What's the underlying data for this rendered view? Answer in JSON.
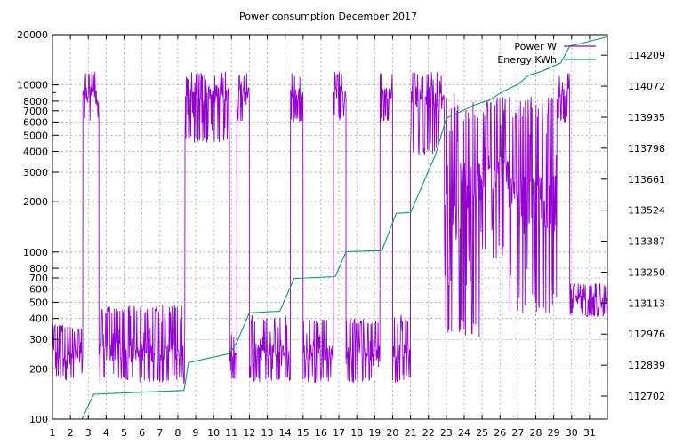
{
  "chart_data": {
    "type": "line",
    "title": "Power consumption December 2017",
    "x_range": [
      1,
      32
    ],
    "x_ticks": [
      "1",
      "2",
      "3",
      "4",
      "5",
      "6",
      "7",
      "8",
      "9",
      "10",
      "11",
      "12",
      "13",
      "14",
      "15",
      "16",
      "17",
      "18",
      "19",
      "20",
      "21",
      "22",
      "23",
      "24",
      "25",
      "26",
      "27",
      "28",
      "29",
      "30",
      "31"
    ],
    "y_left": {
      "scale": "log",
      "range": [
        100,
        20000
      ],
      "ticks": [
        "100",
        "200",
        "300",
        "400",
        "500",
        "600",
        "700",
        "800",
        "1000",
        "2000",
        "3000",
        "4000",
        "5000",
        "6000",
        "7000",
        "8000",
        "10000",
        "20000"
      ]
    },
    "y_right": {
      "scale": "linear",
      "range": [
        112600,
        114300
      ],
      "ticks": [
        "112702",
        "112839",
        "112976",
        "113113",
        "113250",
        "113387",
        "113524",
        "113661",
        "113798",
        "113935",
        "114072",
        "114209"
      ]
    },
    "grid": true,
    "legend": {
      "position": "top-right",
      "entries": [
        {
          "label": "Power W",
          "color": "#9400d3"
        },
        {
          "label": "Energy KWh",
          "color": "#009e73"
        }
      ]
    },
    "series": [
      {
        "name": "Power W",
        "axis": "left",
        "color": "#9400d3",
        "blocks": [
          {
            "x": [
              1.0,
              2.7
            ],
            "low": 170,
            "high": 370,
            "base": 240
          },
          {
            "x": [
              2.7,
              3.6
            ],
            "low": 6000,
            "high": 12000,
            "base": 9000
          },
          {
            "x": [
              3.6,
              8.4
            ],
            "low": 165,
            "high": 480,
            "base": 250
          },
          {
            "x": [
              8.4,
              10.9
            ],
            "low": 4500,
            "high": 12000,
            "base": 9000
          },
          {
            "x": [
              10.9,
              11.3
            ],
            "low": 170,
            "high": 330,
            "base": 240
          },
          {
            "x": [
              11.3,
              12.0
            ],
            "low": 6000,
            "high": 12000,
            "base": 9000
          },
          {
            "x": [
              12.0,
              14.3
            ],
            "low": 165,
            "high": 420,
            "base": 250
          },
          {
            "x": [
              14.3,
              15.0
            ],
            "low": 6000,
            "high": 12000,
            "base": 9000
          },
          {
            "x": [
              15.0,
              16.7
            ],
            "low": 165,
            "high": 400,
            "base": 250
          },
          {
            "x": [
              16.7,
              17.4
            ],
            "low": 6000,
            "high": 12000,
            "base": 9000
          },
          {
            "x": [
              17.4,
              19.3
            ],
            "low": 165,
            "high": 400,
            "base": 250
          },
          {
            "x": [
              19.3,
              20.0
            ],
            "low": 6000,
            "high": 12000,
            "base": 9000
          },
          {
            "x": [
              20.0,
              21.0
            ],
            "low": 165,
            "high": 420,
            "base": 250
          },
          {
            "x": [
              21.0,
              22.9
            ],
            "low": 3800,
            "high": 12000,
            "base": 8500
          },
          {
            "x": [
              22.9,
              23.8
            ],
            "low": 250,
            "high": 9000,
            "base": 1500
          },
          {
            "x": [
              23.8,
              25.0
            ],
            "low": 300,
            "high": 8000,
            "base": 2500
          },
          {
            "x": [
              25.0,
              26.5
            ],
            "low": 900,
            "high": 8500,
            "base": 3000
          },
          {
            "x": [
              26.5,
              29.2
            ],
            "low": 420,
            "high": 8500,
            "base": 2000
          },
          {
            "x": [
              29.2,
              29.9
            ],
            "low": 6000,
            "high": 12000,
            "base": 9000
          },
          {
            "x": [
              29.9,
              32.0
            ],
            "low": 410,
            "high": 650,
            "base": 520
          }
        ]
      },
      {
        "name": "Energy KWh",
        "axis": "right",
        "color": "#009e73",
        "x": [
          1.0,
          2.65,
          3.3,
          8.35,
          8.6,
          10.9,
          11.3,
          12.0,
          13.7,
          14.5,
          16.8,
          17.4,
          19.4,
          20.2,
          21.0,
          22.4,
          23.0,
          23.8,
          24.6,
          25.4,
          26.2,
          27.0,
          27.6,
          28.4,
          29.4,
          29.9,
          30.5,
          31.2,
          32.0
        ],
        "y": [
          112600,
          112600,
          112710,
          112727,
          112850,
          112890,
          112940,
          113070,
          113077,
          113222,
          113230,
          113340,
          113345,
          113510,
          113513,
          113770,
          113930,
          113960,
          113990,
          114010,
          114050,
          114080,
          114120,
          114140,
          114175,
          114250,
          114260,
          114275,
          114290
        ]
      }
    ]
  }
}
